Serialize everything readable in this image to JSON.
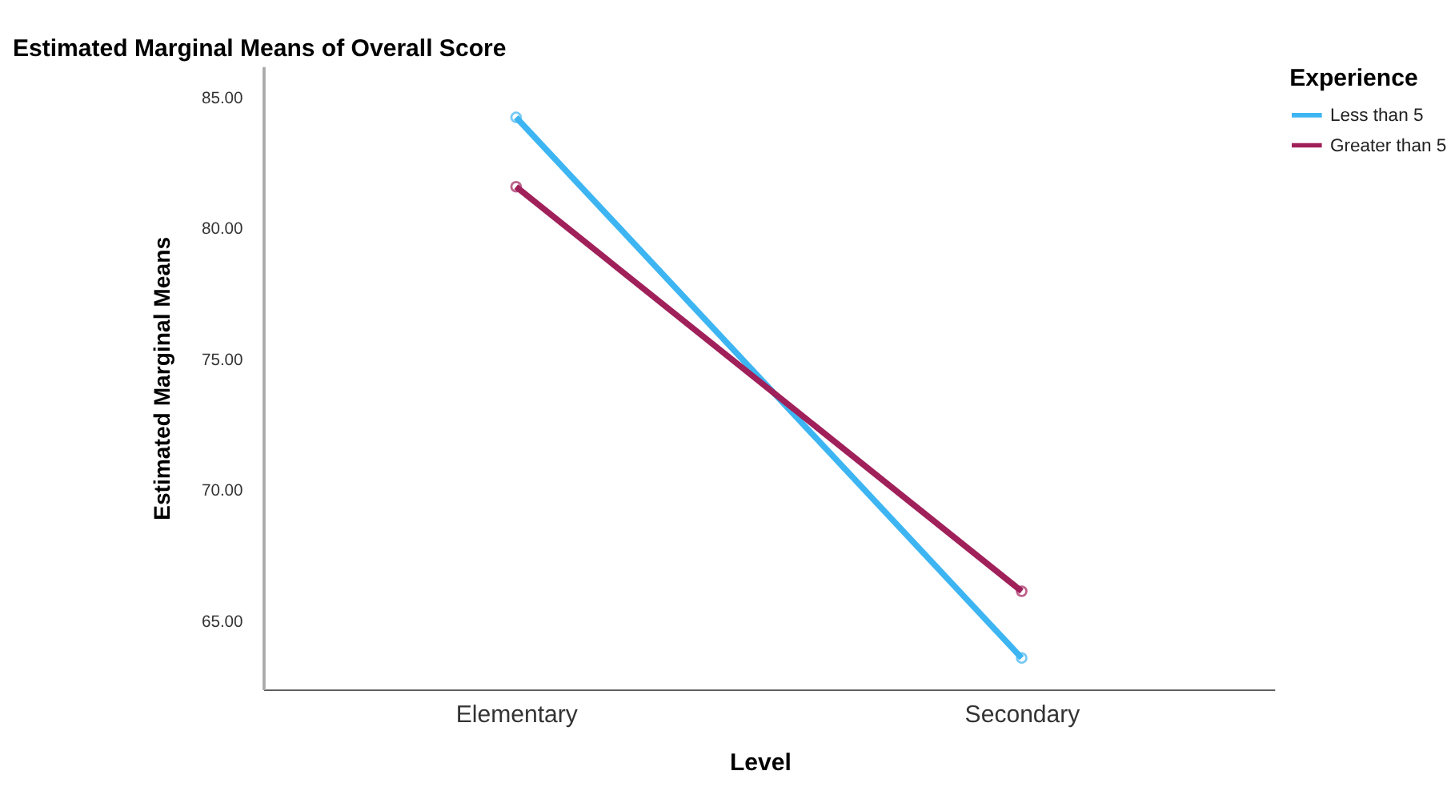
{
  "chart_data": {
    "type": "line",
    "title": "Estimated Marginal Means of Overall Score",
    "xlabel": "Level",
    "ylabel": "Estimated Marginal Means",
    "legend_title": "Experience",
    "categories": [
      "Elementary",
      "Secondary"
    ],
    "series": [
      {
        "name": "Less than 5",
        "color": "#3db5f2",
        "values": [
          84.25,
          63.6
        ]
      },
      {
        "name": "Greater than 5",
        "color": "#a0205a",
        "values": [
          81.6,
          66.15
        ]
      }
    ],
    "ylim": [
      62.4,
      86.2
    ],
    "yticks": [
      {
        "value": 65,
        "label": "65.00"
      },
      {
        "value": 70,
        "label": "70.00"
      },
      {
        "value": 75,
        "label": "75.00"
      },
      {
        "value": 80,
        "label": "80.00"
      },
      {
        "value": 85,
        "label": "85.00"
      }
    ],
    "grid": false,
    "legend": "top right",
    "marker": "circle",
    "line_style": "solid"
  }
}
